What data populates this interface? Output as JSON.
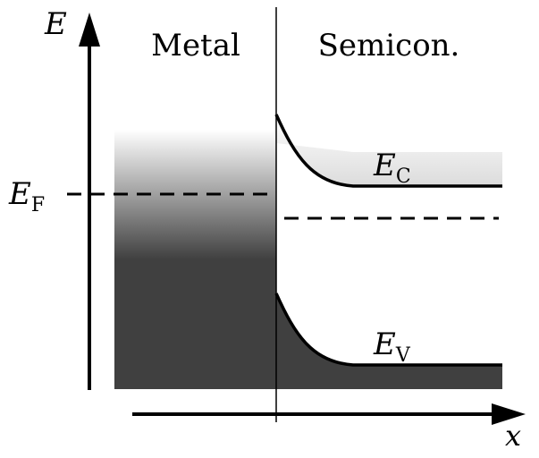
{
  "labels": {
    "energy_axis": "E",
    "position_axis": "x",
    "metal": "Metal",
    "semiconductor": "Semicon.",
    "fermi_level": {
      "main": "E",
      "sub": "F"
    },
    "conduction_band": {
      "main": "E",
      "sub": "C"
    },
    "valence_band": {
      "main": "E",
      "sub": "V"
    }
  },
  "colors": {
    "filled_states": "#404040",
    "lines": "#000000"
  }
}
